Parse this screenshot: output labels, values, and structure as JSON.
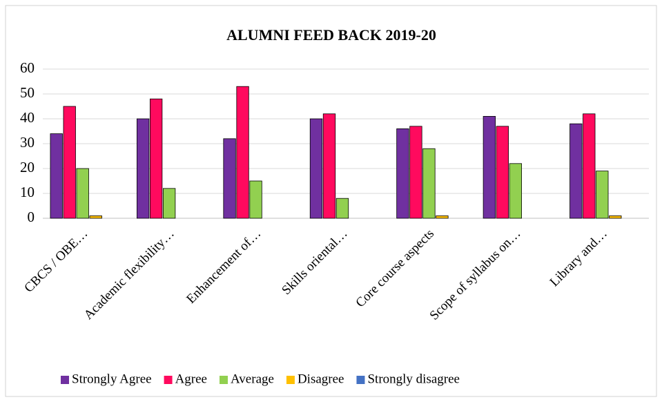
{
  "chart_data": {
    "type": "bar",
    "title": "ALUMNI FEED BACK 2019-20",
    "categories": [
      "CBCS / OBE…",
      "Academic flexibility…",
      "Enhancement of…",
      "Skills oriental…",
      "Core course aspects",
      "Scope of syllabus on…",
      "Library and…"
    ],
    "series": [
      {
        "name": "Strongly Agree",
        "color": "#7030a0",
        "values": [
          34,
          40,
          32,
          40,
          36,
          41,
          38
        ]
      },
      {
        "name": "Agree",
        "color": "#ff0a5e",
        "values": [
          45,
          48,
          53,
          42,
          37,
          37,
          42
        ]
      },
      {
        "name": "Average",
        "color": "#92d050",
        "values": [
          20,
          12,
          15,
          8,
          28,
          22,
          19
        ]
      },
      {
        "name": "Disagree",
        "color": "#ffc000",
        "values": [
          1,
          0,
          0,
          0,
          1,
          0,
          1
        ]
      },
      {
        "name": "Strongly disagree",
        "color": "#4472c4",
        "values": [
          0,
          0,
          0,
          0,
          0,
          0,
          0
        ]
      }
    ],
    "ylim": [
      0,
      60
    ],
    "yticks": [
      0,
      10,
      20,
      30,
      40,
      50,
      60
    ],
    "grid": true,
    "legend": "bottom"
  }
}
